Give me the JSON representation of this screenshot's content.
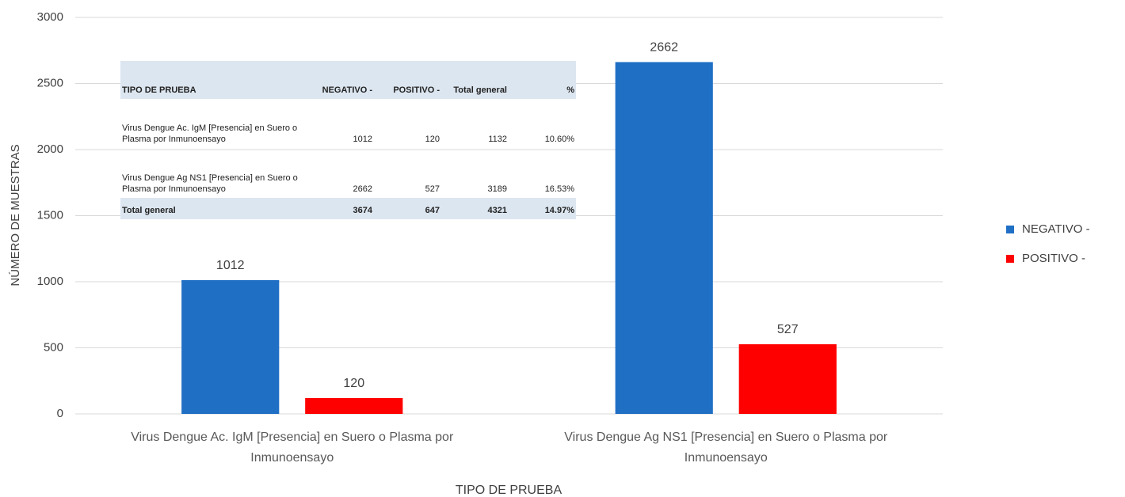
{
  "chart_data": {
    "type": "bar",
    "categories": [
      "Virus Dengue Ac. IgM [Presencia] en Suero o Plasma por Inmunoensayo",
      "Virus Dengue Ag NS1 [Presencia] en Suero o Plasma por Inmunoensayo"
    ],
    "series": [
      {
        "name": "NEGATIVO -",
        "color": "#1f6fc5",
        "values": [
          1012,
          2662
        ]
      },
      {
        "name": "POSITIVO -",
        "color": "#ff0000",
        "values": [
          120,
          527
        ]
      }
    ],
    "xlabel": "TIPO DE PRUEBA",
    "ylabel": "NÚMERO DE MUESTRAS",
    "ylim": [
      0,
      3000
    ],
    "yticks": [
      0,
      500,
      1000,
      1500,
      2000,
      2500,
      3000
    ],
    "grid": true,
    "legend": "right"
  },
  "table": {
    "header": [
      "TIPO DE PRUEBA",
      "NEGATIVO -",
      "POSITIVO -",
      "Total general",
      "%"
    ],
    "rows": [
      [
        "Virus Dengue Ac. IgM [Presencia] en Suero o Plasma por Inmunoensayo",
        1012,
        120,
        1132,
        "10.60%"
      ],
      [
        "Virus Dengue Ag NS1 [Presencia] en Suero o Plasma por Inmunoensayo",
        2662,
        527,
        3189,
        "16.53%"
      ],
      [
        "Total general",
        3674,
        647,
        4321,
        "14.97%"
      ]
    ]
  }
}
